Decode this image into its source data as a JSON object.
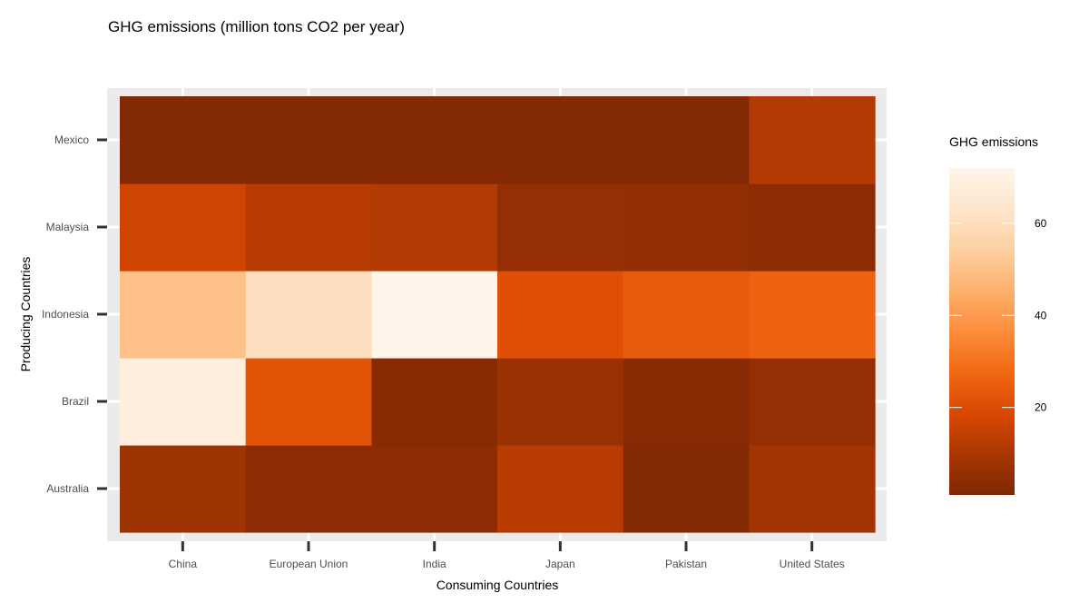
{
  "chart_data": {
    "type": "heatmap",
    "title": "GHG emissions (million tons CO2 per year)",
    "xlabel": "Consuming Countries",
    "ylabel": "Producing Countries",
    "x_categories": [
      "China",
      "European Union",
      "India",
      "Japan",
      "Pakistan",
      "United States"
    ],
    "y_categories": [
      "Australia",
      "Brazil",
      "Indonesia",
      "Malaysia",
      "Mexico"
    ],
    "values": [
      [
        8,
        4,
        4,
        13,
        2,
        9
      ],
      [
        68,
        22,
        3,
        7,
        3,
        6
      ],
      [
        50,
        60,
        72,
        21,
        24,
        26
      ],
      [
        17,
        13,
        12,
        6,
        5,
        4
      ],
      [
        2,
        2,
        2,
        2,
        2,
        12
      ]
    ],
    "color_scale": {
      "low": "#7f2704",
      "high": "#fff5eb",
      "domain": [
        1,
        72
      ]
    },
    "legend": {
      "title": "GHG emissions",
      "ticks": [
        20,
        40,
        60
      ],
      "position": "right"
    },
    "panel_background": "#ebebeb",
    "grid": true
  }
}
